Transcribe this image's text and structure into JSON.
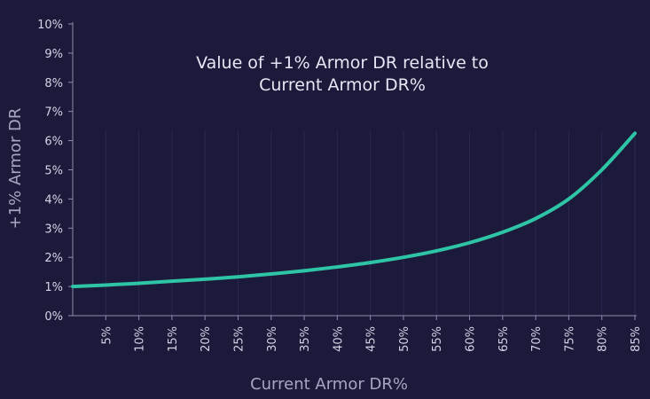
{
  "chart_data": {
    "type": "line",
    "title_lines": [
      "Value of +1% Armor DR relative to",
      "Current Armor DR%"
    ],
    "xlabel": "Current Armor DR%",
    "ylabel": "+1% Armor DR",
    "xlim": [
      0,
      85
    ],
    "ylim": [
      0,
      10
    ],
    "x_ticks": [
      5,
      10,
      15,
      20,
      25,
      30,
      35,
      40,
      45,
      50,
      55,
      60,
      65,
      70,
      75,
      80,
      85
    ],
    "x_tick_labels": [
      "5%",
      "10%",
      "15%",
      "20%",
      "25%",
      "30%",
      "35%",
      "40%",
      "45%",
      "50%",
      "55%",
      "60%",
      "65%",
      "70%",
      "75%",
      "80%",
      "85%"
    ],
    "y_ticks": [
      0,
      1,
      2,
      3,
      4,
      5,
      6,
      7,
      8,
      9,
      10
    ],
    "y_tick_labels": [
      "0%",
      "1%",
      "2%",
      "3%",
      "4%",
      "5%",
      "6%",
      "7%",
      "8%",
      "9%",
      "10%"
    ],
    "grid": false,
    "series": [
      {
        "color": "#2ec4a6",
        "x": [
          0,
          5,
          10,
          15,
          20,
          25,
          30,
          35,
          40,
          45,
          50,
          55,
          60,
          65,
          70,
          75,
          80,
          85
        ],
        "y": [
          1.0,
          1.05,
          1.11,
          1.18,
          1.25,
          1.33,
          1.43,
          1.54,
          1.67,
          1.82,
          2.0,
          2.22,
          2.5,
          2.86,
          3.33,
          4.0,
          5.0,
          6.25
        ]
      }
    ]
  }
}
